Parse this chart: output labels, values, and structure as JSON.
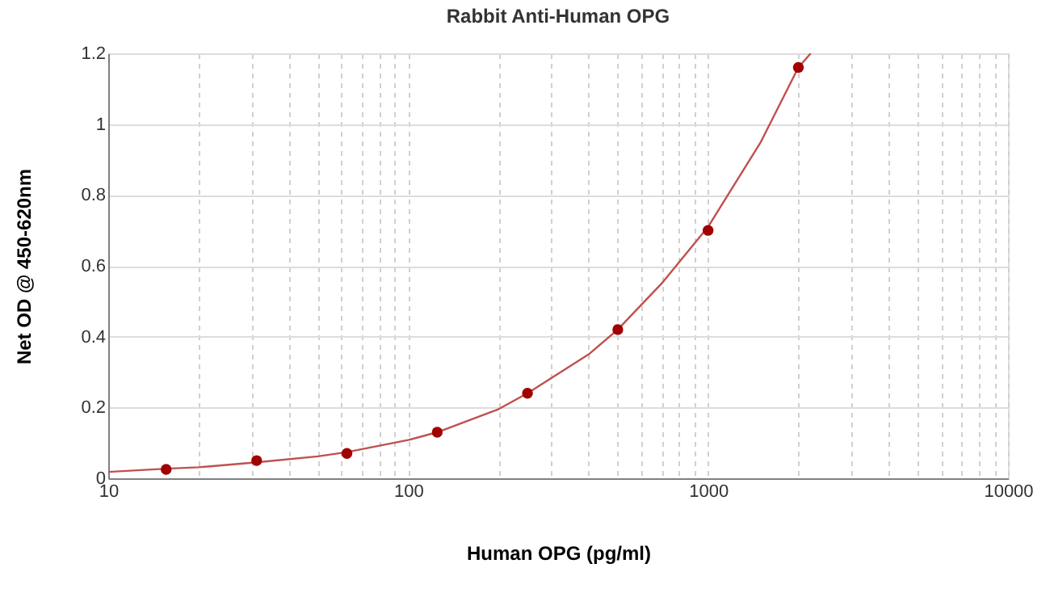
{
  "chart_data": {
    "type": "scatter",
    "title": "Rabbit Anti-Human OPG",
    "xlabel": "Human OPG (pg/ml)",
    "ylabel": "Net OD @ 450-620nm",
    "log": "x",
    "grid": true,
    "xlim": [
      10,
      10000
    ],
    "ylim": [
      0,
      1.2
    ],
    "xticks": [
      10,
      {
        "value": 20,
        "label": null
      },
      {
        "value": 30,
        "label": null
      },
      {
        "value": 40,
        "label": null
      },
      {
        "value": 50,
        "label": null
      },
      {
        "value": 60,
        "label": null
      },
      {
        "value": 70,
        "label": null
      },
      {
        "value": 80,
        "label": null
      },
      {
        "value": 90,
        "label": null
      },
      100,
      {
        "value": 200,
        "label": null
      },
      {
        "value": 300,
        "label": null
      },
      {
        "value": 400,
        "label": null
      },
      {
        "value": 500,
        "label": null
      },
      {
        "value": 600,
        "label": null
      },
      {
        "value": 700,
        "label": null
      },
      {
        "value": 800,
        "label": null
      },
      {
        "value": 900,
        "label": null
      },
      1000,
      {
        "value": 2000,
        "label": null
      },
      {
        "value": 3000,
        "label": null
      },
      {
        "value": 4000,
        "label": null
      },
      {
        "value": 5000,
        "label": null
      },
      {
        "value": 6000,
        "label": null
      },
      {
        "value": 7000,
        "label": null
      },
      {
        "value": 8000,
        "label": null
      },
      {
        "value": 9000,
        "label": null
      },
      10000
    ],
    "yticks": [
      0,
      0.2,
      0.4,
      0.6,
      0.8,
      1,
      1.2
    ],
    "series": [
      {
        "type": "line",
        "color": "#c0504d",
        "line_style": "solid",
        "x": [
          10,
          15.6,
          20,
          31.25,
          50,
          62.5,
          100,
          125,
          200,
          250,
          400,
          500,
          700,
          1000,
          1500,
          2000,
          2200
        ],
        "values": [
          0.018,
          0.027,
          0.031,
          0.045,
          0.062,
          0.074,
          0.108,
          0.13,
          0.195,
          0.24,
          0.35,
          0.42,
          0.55,
          0.71,
          0.95,
          1.16,
          1.2
        ]
      },
      {
        "color": "#a00000",
        "marker": "circle",
        "x": [
          15.6,
          31.25,
          62.5,
          125,
          250,
          500,
          1000,
          2000
        ],
        "values": [
          0.025,
          0.05,
          0.07,
          0.13,
          0.24,
          0.42,
          0.7,
          1.16
        ]
      }
    ]
  }
}
